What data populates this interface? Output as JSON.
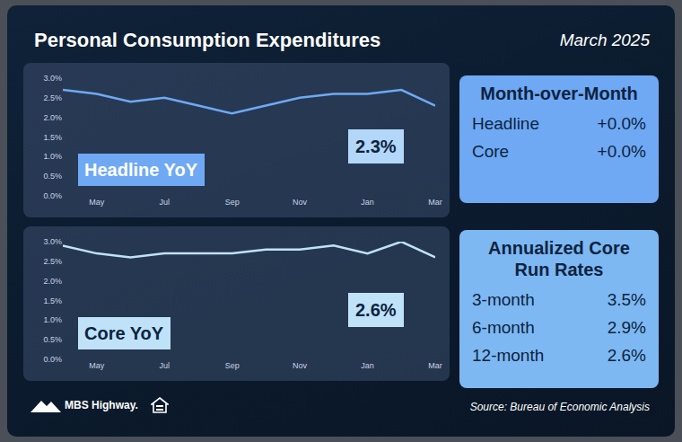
{
  "header": {
    "title": "Personal Consumption Expenditures",
    "date": "March 2025"
  },
  "chart_data": [
    {
      "type": "line",
      "categories": [
        null,
        "May",
        null,
        "Jul",
        null,
        "Sep",
        null,
        "Nov",
        null,
        "Jan",
        null,
        "Mar"
      ],
      "values": [
        2.7,
        2.6,
        2.4,
        2.5,
        2.3,
        2.1,
        2.3,
        2.5,
        2.6,
        2.6,
        2.7,
        2.3
      ],
      "color": "#6fa9f4",
      "ylim": [
        0,
        3
      ],
      "yticks": [
        {
          "value": 0,
          "label": "0.0%"
        },
        {
          "value": 0.5,
          "label": "0.5%"
        },
        {
          "value": 1,
          "label": "1.0%"
        },
        {
          "value": 1.5,
          "label": "1.5%"
        },
        {
          "value": 2,
          "label": "2.0%"
        },
        {
          "value": 2.5,
          "label": "2.5%"
        },
        {
          "value": 3,
          "label": "3.0%"
        }
      ],
      "grid": false,
      "annotations": [
        "Headline YoY",
        "2.3%"
      ]
    },
    {
      "type": "line",
      "categories": [
        null,
        "May",
        null,
        "Jul",
        null,
        "Sep",
        null,
        "Nov",
        null,
        "Jan",
        null,
        "Mar"
      ],
      "values": [
        2.9,
        2.7,
        2.6,
        2.7,
        2.7,
        2.7,
        2.8,
        2.8,
        2.9,
        2.7,
        3.0,
        2.6
      ],
      "color": "#bfe2f8",
      "ylim": [
        0,
        3
      ],
      "yticks": [
        {
          "value": 0,
          "label": "0.0%"
        },
        {
          "value": 0.5,
          "label": "0.5%"
        },
        {
          "value": 1,
          "label": "1.0%"
        },
        {
          "value": 1.5,
          "label": "1.5%"
        },
        {
          "value": 2,
          "label": "2.0%"
        },
        {
          "value": 2.5,
          "label": "2.5%"
        },
        {
          "value": 3,
          "label": "3.0%"
        }
      ],
      "grid": false,
      "annotations": [
        "Core YoY",
        "2.6%"
      ]
    }
  ],
  "panels": [
    {
      "title": "Month-over-Month",
      "rows": [
        {
          "label": "Headline",
          "value": "+0.0%"
        },
        {
          "label": "Core",
          "value": "+0.0%"
        }
      ]
    },
    {
      "title": "Annualized Core Run Rates",
      "rows": [
        {
          "label": "3-month",
          "value": "3.5%"
        },
        {
          "label": "6-month",
          "value": "2.9%"
        },
        {
          "label": "12-month",
          "value": "2.6%"
        }
      ]
    }
  ],
  "footer": {
    "logo": "MBS Highway.",
    "source": "Source: Bureau of Economic Analysis"
  }
}
